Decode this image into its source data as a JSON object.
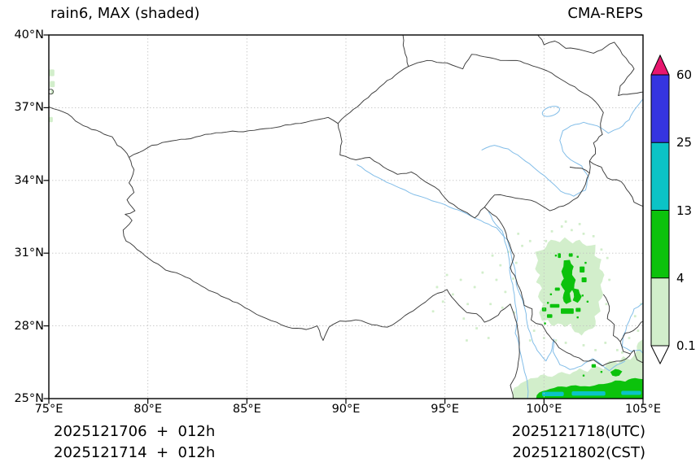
{
  "header": {
    "title": "rain6, MAX (shaded)",
    "source": "CMA-REPS"
  },
  "axes": {
    "x_tick_labels": [
      "75°E",
      "80°E",
      "85°E",
      "90°E",
      "95°E",
      "100°E",
      "105°E"
    ],
    "y_tick_labels": [
      "40°N",
      "37°N",
      "34°N",
      "31°N",
      "28°N",
      "25°N"
    ],
    "extent": {
      "lon_min": 75,
      "lon_max": 105,
      "lat_min": 25,
      "lat_max": 40
    },
    "grid_style": "dotted"
  },
  "colorbar": {
    "tick_labels": [
      "60",
      "25",
      "13",
      "4",
      "0.1"
    ],
    "segment_colors": [
      "#3534e0",
      "#0bc3c6",
      "#0cc20c",
      "#d2eecb"
    ],
    "segment_ranges": [
      "25-60",
      "13-25",
      "4-13",
      "0.1-4"
    ],
    "over_color": "#e8176f",
    "under_color": "#ffffff"
  },
  "footer": {
    "left_line1": "2025121706  +  012h",
    "left_line2": "2025121714  +  012h",
    "right_line1": "2025121718(UTC)",
    "right_line2": "2025121802(CST)"
  },
  "map_data": {
    "variable": "rain6",
    "statistic": "MAX (shaded)",
    "thresholds": [
      0.1,
      4,
      13,
      25,
      60
    ],
    "shaded_regions": [
      {
        "area": "SE cluster ~99.5-103°E, 27.6-31.6°N",
        "levels": "0.1-4 broad, 4-13 core patches near 101-102°E / 28.5-30.7°N"
      },
      {
        "area": "bottom band ~98.5-105°E, 25-26.3°N",
        "levels": "0.1-4 and 4-13 band with 13-25 streaks near 25.2°N"
      },
      {
        "area": "west edge ~75°E, 36.4-38.6°N",
        "levels": "0.1-4 small patches"
      },
      {
        "area": "scattered specks 94-99°E, 27.5-31°N",
        "levels": "0.1-4"
      }
    ],
    "colors": {
      "boundary": "#3b3b3b",
      "river": "#82bde8",
      "grid": "#c2c2c2",
      "frame": "#000000"
    }
  }
}
